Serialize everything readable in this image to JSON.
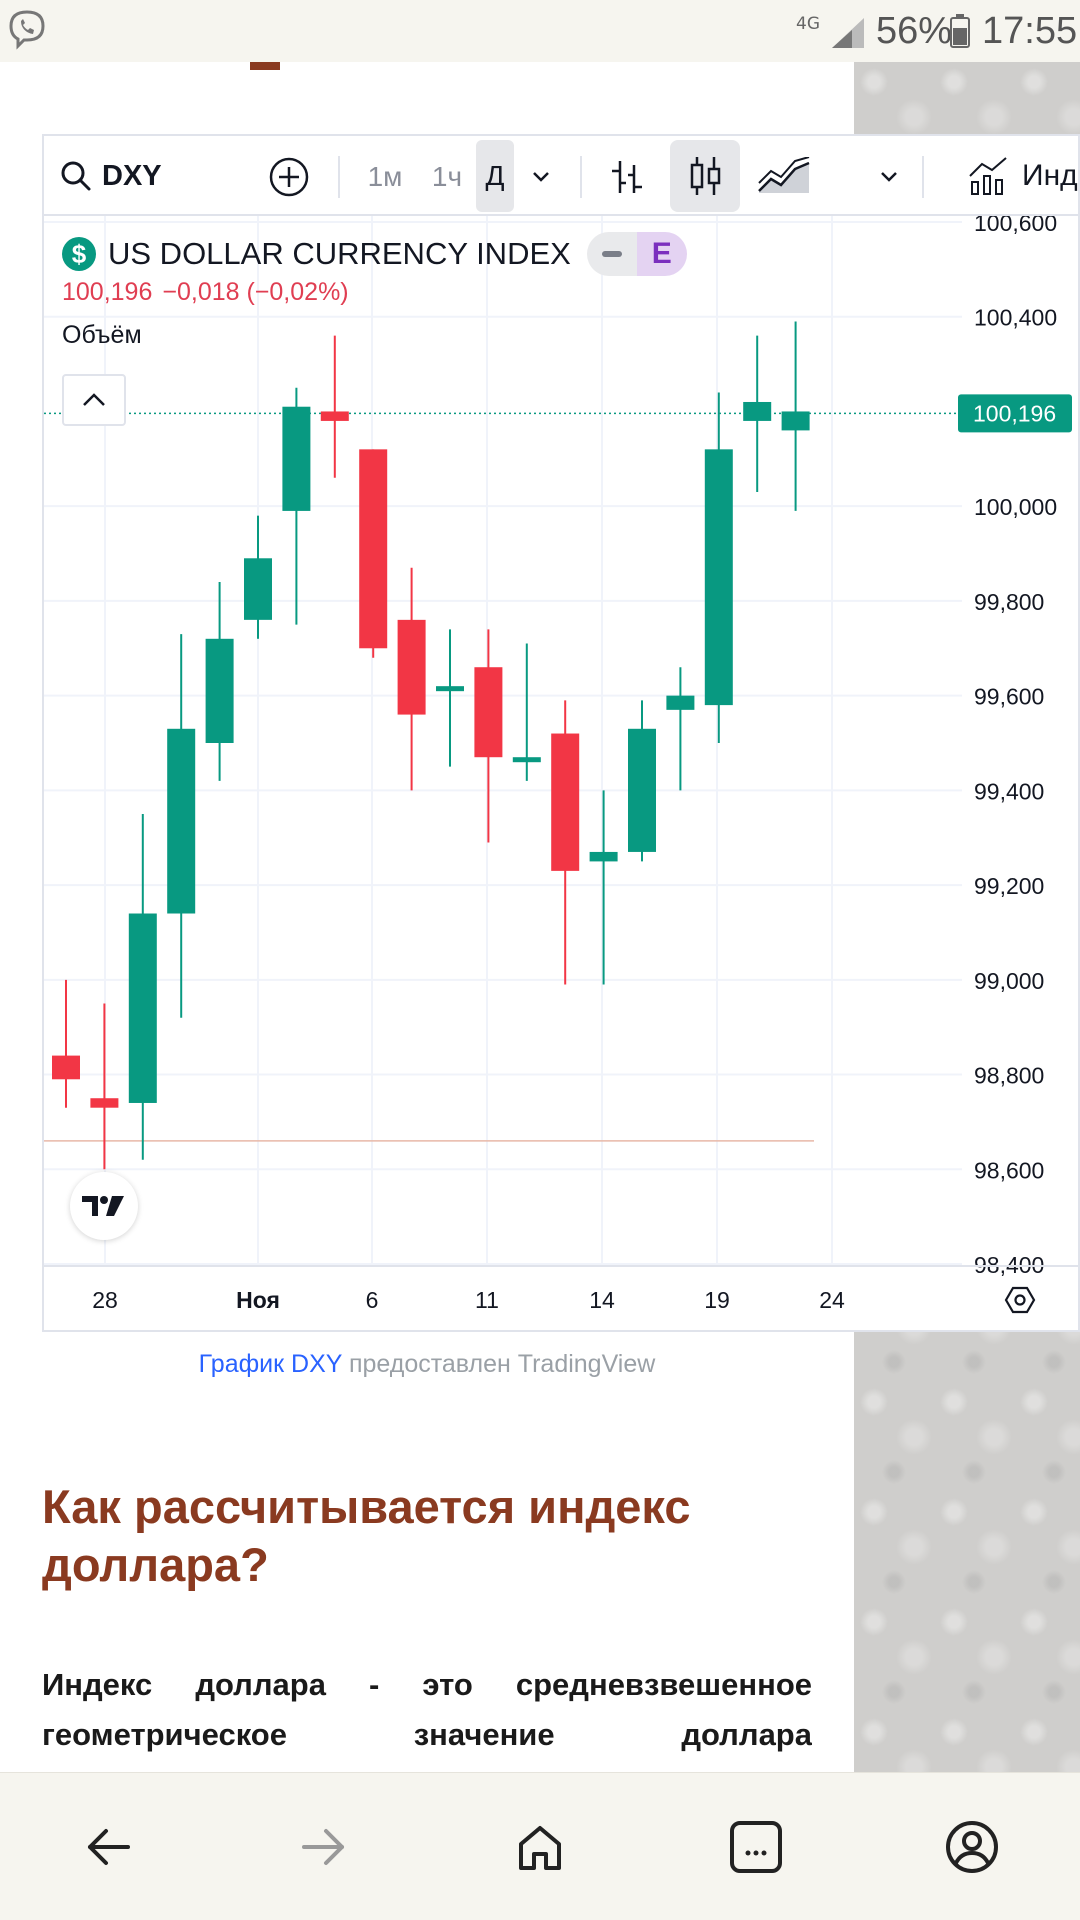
{
  "status_bar": {
    "network": "4G",
    "battery_percent": "56%",
    "time": "17:55",
    "icons": [
      "viber-icon",
      "signal-icon",
      "battery-icon"
    ]
  },
  "toolbar": {
    "symbol": "DXY",
    "intervals": [
      "1м",
      "1ч",
      "Д"
    ],
    "active_interval": "Д",
    "indicators_label": "Индикат"
  },
  "legend": {
    "title": "US DOLLAR CURRENCY INDEX",
    "badge": "E",
    "price": "100,196",
    "change": "−0,018 (−0,02%)",
    "volume_label": "Объём"
  },
  "chart_data": {
    "type": "candlestick",
    "x_ticks": [
      "28",
      "Ноя",
      "6",
      "11",
      "14",
      "19",
      "24"
    ],
    "y_ticks": [
      "100,600",
      "100,400",
      "100,000",
      "99,800",
      "99,600",
      "99,400",
      "99,200",
      "99,000",
      "98,800",
      "98,600",
      "98,400"
    ],
    "ylim": [
      98.4,
      100.6
    ],
    "last_price_label": "100,196",
    "last_price": 100.196,
    "candles": [
      {
        "o": 98.84,
        "h": 99.0,
        "l": 98.73,
        "c": 98.79
      },
      {
        "o": 98.75,
        "h": 98.95,
        "l": 98.6,
        "c": 98.73
      },
      {
        "o": 98.74,
        "h": 99.35,
        "l": 98.62,
        "c": 99.14
      },
      {
        "o": 99.14,
        "h": 99.73,
        "l": 98.92,
        "c": 99.53
      },
      {
        "o": 99.5,
        "h": 99.84,
        "l": 99.42,
        "c": 99.72
      },
      {
        "o": 99.76,
        "h": 99.98,
        "l": 99.72,
        "c": 99.89
      },
      {
        "o": 99.99,
        "h": 100.25,
        "l": 99.75,
        "c": 100.21
      },
      {
        "o": 100.2,
        "h": 100.36,
        "l": 100.06,
        "c": 100.18
      },
      {
        "o": 100.12,
        "h": 100.12,
        "l": 99.68,
        "c": 99.7
      },
      {
        "o": 99.76,
        "h": 99.87,
        "l": 99.4,
        "c": 99.56
      },
      {
        "o": 99.62,
        "h": 99.74,
        "l": 99.45,
        "c": 99.62
      },
      {
        "o": 99.66,
        "h": 99.74,
        "l": 99.29,
        "c": 99.47
      },
      {
        "o": 99.46,
        "h": 99.71,
        "l": 99.42,
        "c": 99.47
      },
      {
        "o": 99.52,
        "h": 99.59,
        "l": 98.99,
        "c": 99.23
      },
      {
        "o": 99.25,
        "h": 99.4,
        "l": 98.99,
        "c": 99.27
      },
      {
        "o": 99.27,
        "h": 99.59,
        "l": 99.25,
        "c": 99.53
      },
      {
        "o": 99.57,
        "h": 99.66,
        "l": 99.4,
        "c": 99.6
      },
      {
        "o": 99.58,
        "h": 100.24,
        "l": 99.5,
        "c": 100.12
      },
      {
        "o": 100.18,
        "h": 100.36,
        "l": 100.03,
        "c": 100.22
      },
      {
        "o": 100.16,
        "h": 100.39,
        "l": 99.99,
        "c": 100.2
      }
    ],
    "colors": {
      "up": "#089981",
      "down": "#f23645",
      "grid": "#f0f3fa",
      "last_price": "#089981"
    }
  },
  "caption": {
    "link": "График DXY",
    "rest": "предоставлен TradingView"
  },
  "article": {
    "heading": "Как рассчитывается индекс доллара?",
    "paragraph": "Индекс доллара - это средневзвешенное геометрическое значение доллара"
  },
  "bottom_nav": [
    "back-icon",
    "forward-icon",
    "home-icon",
    "tabs-icon",
    "profile-icon"
  ]
}
